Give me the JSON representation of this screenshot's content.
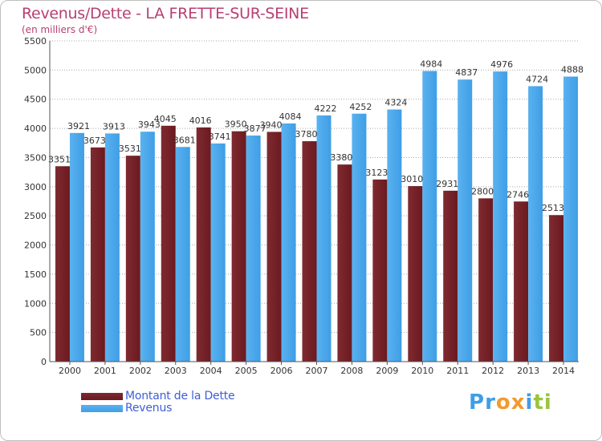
{
  "title": "Revenus/Dette - LA FRETTE-SUR-SEINE",
  "subtitle": "(en milliers d'€)",
  "colors": {
    "title": "#b83f73",
    "dette": "#6b1a1f",
    "revenus": "#3f9ee6",
    "legend_text": "#3d5ed6",
    "grid": "#a9a9a9"
  },
  "chart_data": {
    "type": "bar",
    "categories": [
      "2000",
      "2001",
      "2002",
      "2003",
      "2004",
      "2005",
      "2006",
      "2007",
      "2008",
      "2009",
      "2010",
      "2011",
      "2012",
      "2013",
      "2014"
    ],
    "series": [
      {
        "name": "Montant de la Dette",
        "values": [
          3351,
          3673,
          3531,
          4045,
          4016,
          3950,
          3940,
          3780,
          3380,
          3123,
          3010,
          2931,
          2800,
          2746,
          2513
        ]
      },
      {
        "name": "Revenus",
        "values": [
          3921,
          3913,
          3943,
          3681,
          3741,
          3877,
          4084,
          4222,
          4252,
          4324,
          4984,
          4837,
          4976,
          4724,
          4888
        ]
      }
    ],
    "yticks": [
      0,
      500,
      1000,
      1500,
      2000,
      2500,
      3000,
      3500,
      4000,
      4500,
      5000,
      5500
    ],
    "ylim": [
      0,
      5500
    ],
    "grid": true,
    "legend_position": "bottom-left"
  },
  "legend": {
    "dette_label": "Montant de la Dette",
    "revenus_label": "Revenus"
  },
  "logo": {
    "text": "Proxiti",
    "icon": "proxiti-logo",
    "letter_colors": [
      "#3f9ee6",
      "#3f9ee6",
      "#f29a2e",
      "#f29a2e",
      "#3f9ee6",
      "#9ac43f",
      "#9ac43f"
    ]
  }
}
